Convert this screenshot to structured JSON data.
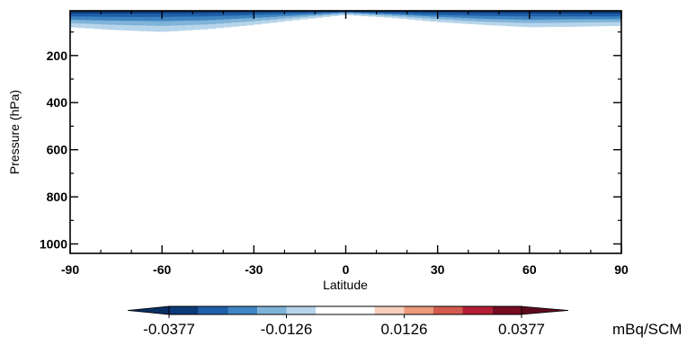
{
  "chart_data": {
    "type": "heatmap",
    "title": "",
    "xlabel": "Latitude",
    "ylabel": "Pressure (hPa)",
    "xlim": [
      -90,
      90
    ],
    "ylim": [
      1040,
      10
    ],
    "y_inverted": true,
    "x_ticks": [
      {
        "value": -90,
        "label": "-90"
      },
      {
        "value": -60,
        "label": "-60"
      },
      {
        "value": -30,
        "label": "-30"
      },
      {
        "value": 0,
        "label": "0"
      },
      {
        "value": 30,
        "label": "30"
      },
      {
        "value": 60,
        "label": "60"
      },
      {
        "value": 90,
        "label": "90"
      }
    ],
    "y_ticks": [
      {
        "value": 200,
        "label": "200"
      },
      {
        "value": 400,
        "label": "400"
      },
      {
        "value": 600,
        "label": "600"
      },
      {
        "value": 800,
        "label": "800"
      },
      {
        "value": 1000,
        "label": "1000"
      }
    ],
    "grid": false,
    "colorbar": {
      "unit": "mBq/SCM",
      "levels": [
        -0.0377,
        -0.0314,
        -0.0251,
        -0.0188,
        -0.0126,
        -0.0063,
        0,
        0.0063,
        0.0126,
        0.0188,
        0.0251,
        0.0314,
        0.0377
      ],
      "colors": [
        "#0d3b79",
        "#1f5fa8",
        "#3f85c2",
        "#7fb3d9",
        "#b7d5ea",
        "#ffffff",
        "#ffffff",
        "#f6d0bc",
        "#eb9a7a",
        "#d35a4f",
        "#b51f33",
        "#770b22"
      ],
      "under_color": "#0a2f63",
      "over_color": "#5c0a1d",
      "tick_labels": [
        {
          "value": -0.0377,
          "label": "-0.0377"
        },
        {
          "value": -0.0126,
          "label": "-0.0126"
        },
        {
          "value": 0.0126,
          "label": "0.0126"
        },
        {
          "value": 0.0377,
          "label": "0.0377"
        }
      ]
    },
    "field_description_lat": [
      -90,
      -75,
      -60,
      -45,
      -30,
      -15,
      0,
      15,
      30,
      45,
      60,
      75,
      90
    ],
    "field_bands": [
      {
        "level_index": 0,
        "pressure_bottom": [
          22,
          22,
          21,
          20,
          18,
          16,
          14,
          16,
          18,
          20,
          21,
          22,
          22
        ]
      },
      {
        "level_index": 1,
        "pressure_bottom": [
          34,
          36,
          36,
          34,
          28,
          22,
          16,
          22,
          28,
          32,
          34,
          34,
          34
        ]
      },
      {
        "level_index": 2,
        "pressure_bottom": [
          48,
          52,
          54,
          50,
          40,
          30,
          18,
          26,
          36,
          44,
          48,
          46,
          46
        ]
      },
      {
        "level_index": 3,
        "pressure_bottom": [
          62,
          70,
          74,
          68,
          54,
          38,
          22,
          32,
          46,
          56,
          62,
          60,
          58
        ]
      },
      {
        "level_index": 4,
        "pressure_bottom": [
          80,
          92,
          100,
          88,
          70,
          48,
          28,
          40,
          58,
          70,
          80,
          78,
          74
        ]
      }
    ]
  }
}
